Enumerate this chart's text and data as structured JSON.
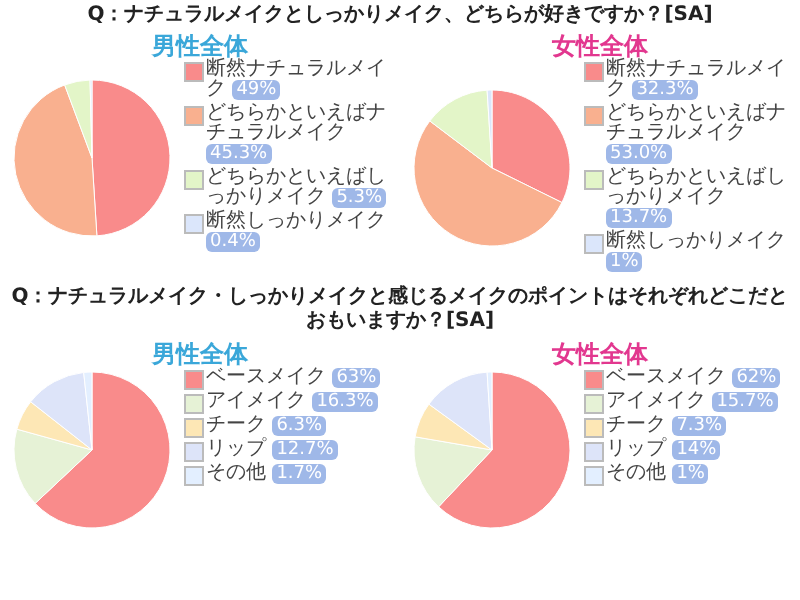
{
  "chart_data": [
    {
      "type": "pie",
      "title": "Q：ナチュラルメイクとしっかりメイク、どちらが好きですか？[SA]",
      "subtitle": "男性全体",
      "categories": [
        "断然ナチュラルメイク",
        "どちらかといえばナチュラルメイク",
        "どちらかといえばしっかりメイク",
        "断然しっかりメイク"
      ],
      "legend": "right",
      "values": [
        49,
        45.3,
        5.3,
        0.4
      ],
      "value_labels": [
        "49%",
        "45.3%",
        "5.3%",
        "0.4%"
      ],
      "colors": [
        "#f98b8b",
        "#f9b08f",
        "#e3f5c8",
        "#dbe6fb"
      ]
    },
    {
      "type": "pie",
      "subtitle": "女性全体",
      "categories": [
        "断然ナチュラルメイク",
        "どちらかといえばナチュラルメイク",
        "どちらかといえばしっかりメイク",
        "断然しっかりメイク"
      ],
      "legend": "right",
      "values": [
        32.3,
        53.0,
        13.7,
        1
      ],
      "value_labels": [
        "32.3%",
        "53.0%",
        "13.7%",
        "1%"
      ],
      "colors": [
        "#f98b8b",
        "#f9b08f",
        "#e3f5c8",
        "#dbe6fb"
      ]
    },
    {
      "type": "pie",
      "title": "Q：ナチュラルメイク・しっかりメイクと感じるメイクのポイントはそれぞれどこだとおもいますか？[SA]",
      "subtitle": "男性全体",
      "categories": [
        "ベースメイク",
        "アイメイク",
        "チーク",
        "リップ",
        "その他"
      ],
      "legend": "right",
      "values": [
        63,
        16.3,
        6.3,
        12.7,
        1.7
      ],
      "value_labels": [
        "63%",
        "16.3%",
        "6.3%",
        "12.7%",
        "1.7%"
      ],
      "colors": [
        "#f98b8b",
        "#e6f2d6",
        "#fde7b5",
        "#dde4f9",
        "#e3efff"
      ]
    },
    {
      "type": "pie",
      "subtitle": "女性全体",
      "categories": [
        "ベースメイク",
        "アイメイク",
        "チーク",
        "リップ",
        "その他"
      ],
      "legend": "right",
      "values": [
        62,
        15.7,
        7.3,
        14,
        1
      ],
      "value_labels": [
        "62%",
        "15.7%",
        "7.3%",
        "14%",
        "1%"
      ],
      "colors": [
        "#f98b8b",
        "#e6f2d6",
        "#fde7b5",
        "#dde4f9",
        "#e3efff"
      ]
    }
  ]
}
